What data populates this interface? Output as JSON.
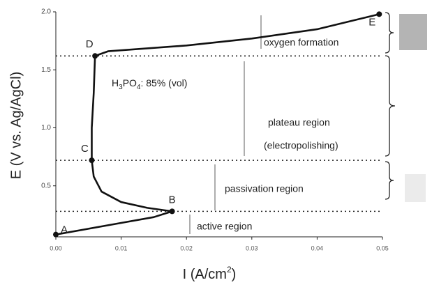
{
  "chart_data": {
    "type": "line",
    "x": [
      0,
      0.005,
      0.01,
      0.015,
      0.0178,
      0.014,
      0.01,
      0.007,
      0.0058,
      0.0055,
      0.0055,
      0.0058,
      0.006,
      0.008,
      0.02,
      0.03,
      0.04,
      0.0495
    ],
    "values": [
      0.08,
      0.13,
      0.18,
      0.23,
      0.28,
      0.31,
      0.36,
      0.45,
      0.58,
      0.72,
      1.0,
      1.3,
      1.62,
      1.66,
      1.71,
      1.77,
      1.85,
      1.98
    ],
    "color": "#111",
    "points": [
      {
        "label": "A",
        "x": 0,
        "y": 0.08
      },
      {
        "label": "B",
        "x": 0.0178,
        "y": 0.28
      },
      {
        "label": "C",
        "x": 0.0055,
        "y": 0.72
      },
      {
        "label": "D",
        "x": 0.006,
        "y": 1.62
      },
      {
        "label": "E",
        "x": 0.0495,
        "y": 1.98
      }
    ],
    "xlim": [
      0,
      0.05
    ],
    "ylim": [
      0.06,
      2.0
    ],
    "xticks": [
      {
        "value": 0,
        "label": "0.00"
      },
      0.01,
      0.02,
      0.03,
      0.04,
      0.05
    ],
    "yticks": [
      0.5,
      {
        "value": 1,
        "label": "1.0"
      },
      1.5,
      {
        "value": 2,
        "label": "2.0"
      }
    ],
    "xlabel": {
      "main": "I (A/cm",
      "sup": "2",
      "end": ")"
    },
    "ylabel": "E (V vs. Ag/AgCl)",
    "electrolyte": {
      "p1": "H",
      "s1": "3",
      "p2": "PO",
      "s2": "4",
      "p3": ": 85% (vol)"
    },
    "regions": [
      "oxygen formation",
      "plateau region",
      "(electropolishing)",
      "passivation region",
      "active region"
    ]
  }
}
